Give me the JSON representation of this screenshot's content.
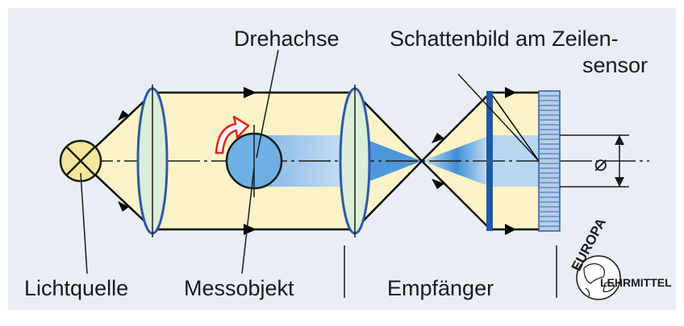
{
  "labels": {
    "lichtquelle": "Lichtquelle",
    "messobjekt": "Messobjekt",
    "drehachse": "Drehachse",
    "empfaenger": "Empfänger",
    "schattenbild_line1": "Schattenbild am Zeilen-",
    "schattenbild_line2": "sensor",
    "diameter_symbol": "⌀"
  },
  "logo": {
    "top": "EUROPA",
    "bottom": "LEHRMITTEL",
    "icon": "globe-icon"
  },
  "colors": {
    "background": "#e8eef4",
    "light_beam": "#fbf3c8",
    "shadow_beam": "#8fc1e8",
    "lens": "#dbeed7",
    "lens_outline": "#2f59a8",
    "sensor_bar": "#1d5aa6",
    "object": "#6fb0e4",
    "lamp": "#f3e79b",
    "rotation_arrow": "#e2241c"
  }
}
